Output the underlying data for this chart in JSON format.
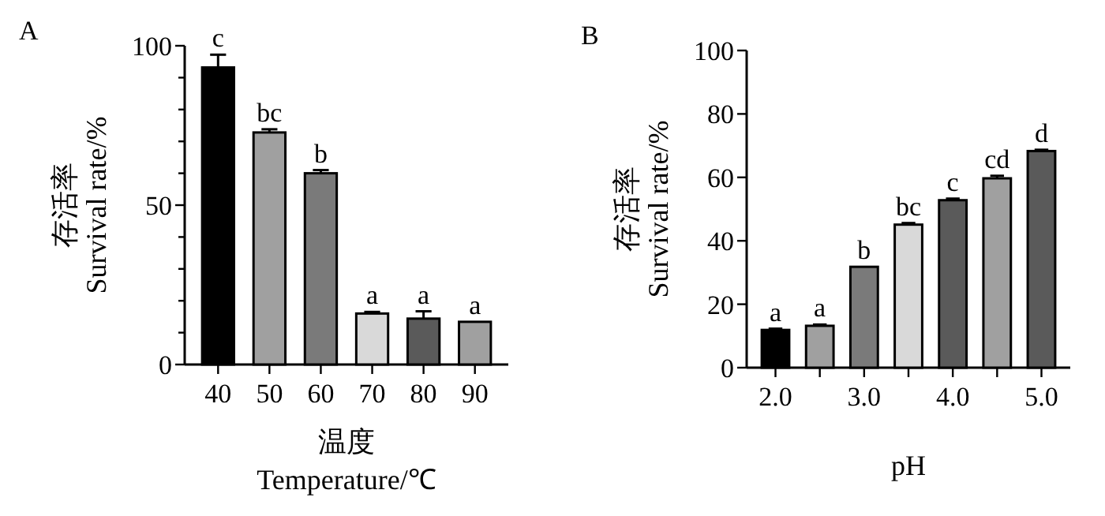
{
  "chart_data": [
    {
      "type": "bar",
      "title": "A",
      "ylabel": "存活率\nSurvival rate/%",
      "xlabel": "温度\nTemperature/℃",
      "categories": [
        "40",
        "50",
        "60",
        "70",
        "80",
        "90"
      ],
      "values": [
        93.2,
        72.8,
        60,
        16,
        14.4,
        13.4
      ],
      "colors": [
        "#000000",
        "#a0a0a0",
        "#7a7a7a",
        "#d9d9d9",
        "#5a5a5a",
        "#a0a0a0"
      ],
      "errors": [
        4,
        1,
        1,
        0.5,
        2.3,
        null
      ],
      "value_labels": [
        "c",
        "bc",
        "b",
        "a",
        "a",
        "a"
      ],
      "ylim": [
        0,
        100
      ],
      "yticks": [
        0,
        {
          "value": 10,
          "label": null
        },
        {
          "value": 20,
          "label": null
        },
        {
          "value": 30,
          "label": null
        },
        {
          "value": 40,
          "label": null
        },
        50,
        {
          "value": 60,
          "label": null
        },
        {
          "value": 70,
          "label": null
        },
        {
          "value": 80,
          "label": null
        },
        {
          "value": 90,
          "label": null
        },
        100
      ]
    },
    {
      "type": "bar",
      "title": "B",
      "ylabel": "存活率\nSurvival rate/%",
      "xlabel": "pH",
      "categories": [
        "2.0",
        null,
        "3.0",
        null,
        "4.0",
        null,
        "5.0"
      ],
      "values": [
        11.9,
        13.2,
        31.8,
        45.1,
        52.8,
        59.7,
        68.3
      ],
      "colors": [
        "#000000",
        "#a0a0a0",
        "#7a7a7a",
        "#d9d9d9",
        "#5a5a5a",
        "#a0a0a0",
        "#5a5a5a"
      ],
      "errors": [
        0.4,
        0.4,
        null,
        0.5,
        0.5,
        0.8,
        0.4
      ],
      "value_labels": [
        "a",
        "a",
        "b",
        "bc",
        "c",
        "cd",
        "d"
      ],
      "ylim": [
        0,
        100
      ],
      "yticks": [
        0,
        20,
        40,
        60,
        80,
        100
      ]
    }
  ]
}
